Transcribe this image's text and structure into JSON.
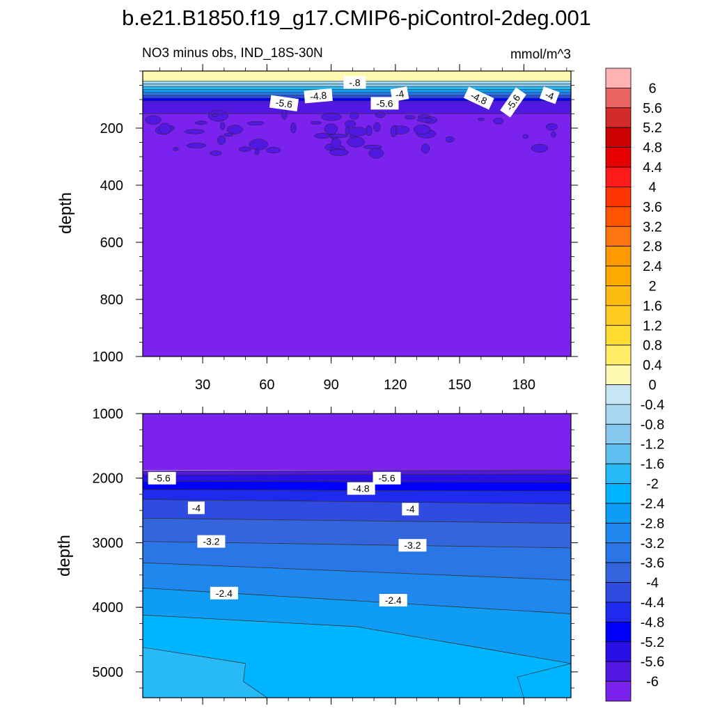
{
  "chart_data": {
    "type": "contour",
    "title": "b.e21.B1850.f19_g17.CMIP6-piControl-2deg.001",
    "subtitle_left": "NO3 minus obs, IND_18S-30N",
    "subtitle_right": "mmol/m^3",
    "ylabel": "depth",
    "x_range": [
      2,
      202
    ],
    "x_ticks": [
      30,
      60,
      90,
      120,
      150,
      180
    ],
    "x_tick_labels": [
      "30",
      "60",
      "90",
      "120",
      "150",
      "180"
    ],
    "panels": [
      {
        "name": "upper",
        "ylim": [
          0,
          1000
        ],
        "y_ticks": [
          200,
          400,
          600,
          800,
          1000
        ],
        "y_tick_labels": [
          "200",
          "400",
          "600",
          "800",
          "1000"
        ],
        "show_x_labels": true,
        "bands": [
          {
            "top": 0,
            "bottom": 35,
            "value": 0.2
          },
          {
            "top": 35,
            "bottom": 45,
            "value": -0.4
          },
          {
            "top": 45,
            "bottom": 55,
            "value": -1.0
          },
          {
            "top": 55,
            "bottom": 65,
            "value": -1.8
          },
          {
            "top": 65,
            "bottom": 75,
            "value": -2.6
          },
          {
            "top": 75,
            "bottom": 85,
            "value": -3.4
          },
          {
            "top": 85,
            "bottom": 95,
            "value": -4.2
          },
          {
            "top": 95,
            "bottom": 105,
            "value": -5.0
          },
          {
            "top": 105,
            "bottom": 150,
            "value": -5.8
          },
          {
            "top": 150,
            "bottom": 1000,
            "value": -6.2
          }
        ],
        "contour_labels": [
          {
            "x": 101,
            "y": 40,
            "text": "-.8",
            "rot": 0
          },
          {
            "x": 84,
            "y": 87,
            "text": "-4.8",
            "rot": -5
          },
          {
            "x": 122,
            "y": 81,
            "text": "-4",
            "rot": -10
          },
          {
            "x": 68,
            "y": 113,
            "text": "-5.6",
            "rot": 8
          },
          {
            "x": 115,
            "y": 113,
            "text": "-5.6",
            "rot": 0
          },
          {
            "x": 159,
            "y": 95,
            "text": "-4.8",
            "rot": 25
          },
          {
            "x": 175,
            "y": 110,
            "text": "-5.6",
            "rot": -55
          },
          {
            "x": 192,
            "y": 85,
            "text": "-4",
            "rot": 20
          }
        ]
      },
      {
        "name": "lower",
        "ylim": [
          1000,
          5400
        ],
        "y_ticks": [
          1000,
          2000,
          3000,
          4000,
          5000
        ],
        "y_tick_labels": [
          "1000",
          "2000",
          "3000",
          "4000",
          "5000"
        ],
        "show_x_labels": false,
        "contour_lines": [
          {
            "level": -6.0,
            "x": [
              2,
              202
            ],
            "depth": [
              1890,
              1880
            ]
          },
          {
            "level": -5.6,
            "x": [
              2,
              202
            ],
            "depth": [
              1950,
              1940
            ]
          },
          {
            "level": -5.2,
            "x": [
              2,
              202
            ],
            "depth": [
              2050,
              2060
            ]
          },
          {
            "level": -4.8,
            "x": [
              2,
              202
            ],
            "depth": [
              2180,
              2200
            ]
          },
          {
            "level": -4.4,
            "x": [
              2,
              202
            ],
            "depth": [
              2330,
              2400
            ]
          },
          {
            "level": -4.0,
            "x": [
              2,
              202
            ],
            "depth": [
              2620,
              2700
            ]
          },
          {
            "level": -3.6,
            "x": [
              2,
              202
            ],
            "depth": [
              2980,
              3080
            ]
          },
          {
            "level": -3.2,
            "x": [
              2,
              202
            ],
            "depth": [
              3310,
              3580
            ]
          },
          {
            "level": -2.8,
            "x": [
              2,
              202
            ],
            "depth": [
              3700,
              4100
            ]
          },
          {
            "level": -2.4,
            "x": [
              2,
              102,
              202
            ],
            "depth": [
              4120,
              4300,
              4870
            ]
          }
        ],
        "corner_patches": [
          {
            "value": -1.8,
            "x": [
              2,
              50,
              49,
              60,
              2
            ],
            "depth": [
              4620,
              4870,
              5150,
              5400,
              5400
            ]
          },
          {
            "value": -2.2,
            "x": [
              177,
              202,
              202,
              180
            ],
            "depth": [
              5080,
              4870,
              5400,
              5400
            ]
          }
        ],
        "contour_labels": [
          {
            "x": 11,
            "y": 2000,
            "text": "-5.6"
          },
          {
            "x": 116,
            "y": 2000,
            "text": "-5.6"
          },
          {
            "x": 104,
            "y": 2160,
            "text": "-4.8"
          },
          {
            "x": 27,
            "y": 2460,
            "text": "-4"
          },
          {
            "x": 127,
            "y": 2480,
            "text": "-4"
          },
          {
            "x": 34,
            "y": 2980,
            "text": "-3.2"
          },
          {
            "x": 128,
            "y": 3040,
            "text": "-3.2"
          },
          {
            "x": 40,
            "y": 3780,
            "text": "-2.4"
          },
          {
            "x": 119,
            "y": 3890,
            "text": "-2.4"
          }
        ]
      }
    ],
    "colorbar": {
      "levels": [
        6,
        5.6,
        5.2,
        4.8,
        4.4,
        4,
        3.6,
        3.2,
        2.8,
        2.4,
        2,
        1.6,
        1.2,
        0.8,
        0.4,
        0,
        -0.4,
        -0.8,
        -1.2,
        -1.6,
        -2,
        -2.4,
        -2.8,
        -3.2,
        -3.6,
        -4,
        -4.4,
        -4.8,
        -5.2,
        -5.6,
        -6
      ],
      "labels": [
        "6",
        "5.6",
        "5.2",
        "4.8",
        "4.4",
        "4",
        "3.6",
        "3.2",
        "2.8",
        "2.4",
        "2",
        "1.6",
        "1.2",
        "0.8",
        "0.4",
        "0",
        "-0.4",
        "-0.8",
        "-1.2",
        "-1.6",
        "-2",
        "-2.4",
        "-2.8",
        "-3.2",
        "-3.6",
        "-4",
        "-4.4",
        "-4.8",
        "-5.2",
        "-5.6",
        "-6"
      ],
      "colors": [
        "#ffb3b3",
        "#ea6464",
        "#d42a2a",
        "#cc0000",
        "#e60000",
        "#ff1a1a",
        "#ff3300",
        "#ff5500",
        "#ff7711",
        "#ff9900",
        "#ffaa00",
        "#ffbb11",
        "#ffcc22",
        "#ffdd33",
        "#ffee66",
        "#fff8b0",
        "#c6e6f5",
        "#a6d8f0",
        "#86c9ee",
        "#5fc0f2",
        "#27baf7",
        "#00b4ff",
        "#0e9cf5",
        "#1e88ee",
        "#2a76e6",
        "#3366dd",
        "#2f4be0",
        "#1e2aee",
        "#0000ff",
        "#2a10e6",
        "#5018e0",
        "#7b22ee"
      ]
    }
  }
}
